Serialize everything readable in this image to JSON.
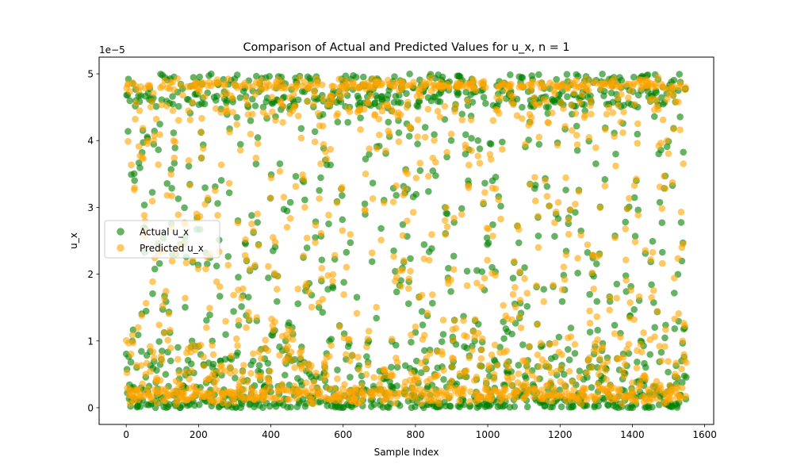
{
  "chart_data": {
    "type": "scatter",
    "title": "Comparison of Actual and Predicted Values for u_x, n = 1",
    "xlabel": "Sample Index",
    "ylabel": "u_x",
    "offset_text": "1e−5",
    "xlim": [
      -75,
      1625
    ],
    "ylim": [
      -0.25,
      5.25
    ],
    "xticks": [
      0,
      200,
      400,
      600,
      800,
      1000,
      1200,
      1400,
      1600
    ],
    "yticks": [
      0,
      1,
      2,
      3,
      4,
      5
    ],
    "legend_position": "center-left",
    "grid": false,
    "n_samples": 1550,
    "series": [
      {
        "name": "Actual u_x",
        "color": "#008000",
        "alpha": 0.6
      },
      {
        "name": "Predicted u_x",
        "color": "#FFA500",
        "alpha": 0.6
      }
    ]
  }
}
